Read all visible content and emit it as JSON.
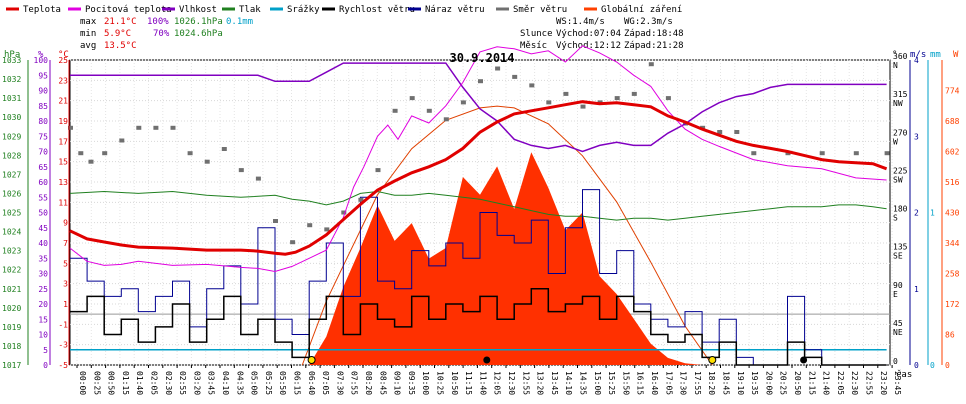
{
  "chart_data": {
    "type": "line",
    "title": "30.9.2014",
    "legend": [
      {
        "name": "Teplota",
        "color": "#e00000"
      },
      {
        "name": "Pocitová teplota",
        "color": "#e000e0"
      },
      {
        "name": "Vlhkost",
        "color": "#8000c0"
      },
      {
        "name": "Tlak",
        "color": "#208020"
      },
      {
        "name": "Srážky",
        "color": "#00a0c8"
      },
      {
        "name": "Rychlost větru",
        "color": "#000000"
      },
      {
        "name": "Náraz větru",
        "color": "#000090"
      },
      {
        "name": "Směr větru",
        "color": "#707070"
      },
      {
        "name": "Globální záření",
        "color": "#ff4000"
      }
    ],
    "stats": {
      "max_label": "max",
      "max_temp": "21.1°C",
      "max_hum": "100%",
      "max_press": "1026.1hPa",
      "max_rain": "0.1mm",
      "min_label": "min",
      "min_temp": "5.9°C",
      "min_hum": "70%",
      "min_press": "1024.6hPa",
      "avg_label": "avg",
      "avg_temp": "13.5°C"
    },
    "info": {
      "ws": "WS:1.4m/s",
      "wg": "WG:2.3m/s",
      "slunce_label": "Slunce",
      "slunce_vychod": "Východ:07:04",
      "slunce_zapad": "Západ:18:48",
      "mesic_label": "Měsíc",
      "mesic_vychod": "Východ:12:12",
      "mesic_zapad": "Západ:21:28"
    },
    "axes": {
      "hpa_label": "hPa",
      "pct_label": "%",
      "temp_label": "°C",
      "hpa_ticks": [
        "1033",
        "1032",
        "1031",
        "1030",
        "1029",
        "1028",
        "1027",
        "1026",
        "1025",
        "1024",
        "1023",
        "1022",
        "1021",
        "1020",
        "1019",
        "1018",
        "1017"
      ],
      "pct_ticks": [
        "100",
        "95",
        "90",
        "85",
        "80",
        "75",
        "70",
        "65",
        "60",
        "55",
        "50",
        "45",
        "40",
        "35",
        "30",
        "25",
        "20",
        "15",
        "10",
        "5",
        "0"
      ],
      "temp_ticks": [
        "25",
        "23",
        "21",
        "19",
        "17",
        "15",
        "13",
        "11",
        "9",
        "7",
        "5",
        "3",
        "1",
        "-1",
        "-3",
        "-5"
      ],
      "deg_label": "°",
      "deg_ticks": [
        "360",
        "315",
        "270",
        "225",
        "180",
        "135",
        "90",
        "45",
        "0"
      ],
      "dir_ticks": [
        "N",
        "NW",
        "W",
        "SW",
        "S",
        "SE",
        "E",
        "NE",
        ""
      ],
      "ms_label": "m/s",
      "mm_label": "mm",
      "w_label": "W",
      "ms_ticks": [
        "4",
        "3",
        "2",
        "1",
        "0"
      ],
      "mm_ticks": [
        "1",
        "0"
      ],
      "w_ticks": [
        "774",
        "688",
        "602",
        "516",
        "430",
        "344",
        "258",
        "172",
        "86",
        "0"
      ],
      "x_unit": "čas",
      "x_ticks": [
        "00:00",
        "00:25",
        "00:50",
        "01:15",
        "01:40",
        "02:05",
        "02:30",
        "02:55",
        "03:20",
        "03:45",
        "04:10",
        "04:35",
        "05:00",
        "05:25",
        "05:50",
        "06:15",
        "06:40",
        "07:05",
        "07:30",
        "07:55",
        "08:20",
        "08:45",
        "09:10",
        "09:35",
        "10:00",
        "10:25",
        "10:50",
        "11:15",
        "11:40",
        "12:05",
        "12:30",
        "12:55",
        "13:20",
        "13:45",
        "14:10",
        "14:35",
        "15:00",
        "15:25",
        "15:50",
        "16:15",
        "16:40",
        "17:05",
        "17:30",
        "17:55",
        "18:20",
        "18:45",
        "19:10",
        "19:35",
        "20:00",
        "20:25",
        "20:50",
        "21:15",
        "21:40",
        "22:05",
        "22:30",
        "22:55",
        "23:20",
        "23:45"
      ]
    },
    "series": {
      "temperature": {
        "x": [
          0,
          0.5,
          1,
          1.5,
          2,
          3,
          4,
          5,
          5.5,
          6,
          6.3,
          6.6,
          7,
          7.5,
          8,
          8.5,
          9,
          9.5,
          10,
          10.5,
          11,
          11.5,
          12,
          12.5,
          13,
          13.5,
          14,
          14.5,
          15,
          15.5,
          16,
          16.5,
          17,
          17.5,
          18,
          18.5,
          19,
          19.5,
          20,
          20.5,
          21,
          21.5,
          22,
          22.5,
          23,
          23.5,
          23.9
        ],
        "y": [
          8.2,
          7.4,
          7.1,
          6.8,
          6.6,
          6.5,
          6.3,
          6.3,
          6.2,
          6.0,
          5.9,
          6.1,
          6.7,
          7.8,
          9.3,
          10.8,
          12.2,
          13.1,
          13.9,
          14.5,
          15.2,
          16.3,
          17.9,
          18.9,
          19.7,
          20.0,
          20.3,
          20.6,
          20.9,
          20.7,
          20.8,
          20.6,
          20.4,
          19.5,
          18.9,
          18.2,
          17.6,
          17.0,
          16.6,
          16.3,
          16.0,
          15.6,
          15.2,
          15.0,
          14.9,
          14.8,
          14.3
        ]
      },
      "feels_like": {
        "x": [
          0,
          0.5,
          1,
          1.5,
          2,
          3,
          4,
          5,
          5.5,
          6,
          6.5,
          7,
          7.5,
          8,
          8.3,
          8.6,
          9,
          9.3,
          9.6,
          10,
          10.5,
          11,
          11.5,
          12,
          12.5,
          13,
          13.5,
          14,
          14.5,
          15,
          15.5,
          16,
          16.5,
          17,
          17.5,
          18,
          18.5,
          19,
          20,
          21,
          22,
          23,
          23.9
        ],
        "y": [
          6.5,
          5.2,
          4.8,
          4.9,
          5.2,
          4.8,
          4.9,
          4.6,
          4.5,
          4.2,
          4.7,
          5.5,
          6.3,
          9.5,
          12.5,
          14.5,
          17.5,
          18.6,
          17.2,
          19.5,
          18.8,
          20.5,
          22.8,
          25.8,
          26.3,
          26.1,
          25.6,
          25.9,
          24.8,
          26.4,
          25.7,
          24.8,
          23.5,
          22.4,
          20.0,
          18.2,
          17.2,
          16.5,
          15.2,
          14.6,
          14.3,
          13.4,
          13.2
        ]
      },
      "humidity": {
        "x": [
          0,
          1,
          2,
          3,
          4,
          5,
          5.5,
          6,
          6.5,
          7,
          7.5,
          8,
          8.5,
          9,
          9.5,
          10,
          10.5,
          11,
          11.5,
          12,
          12.5,
          13,
          13.5,
          14,
          14.5,
          15,
          15.5,
          16,
          16.5,
          17,
          17.5,
          18,
          18.5,
          19,
          19.5,
          20,
          20.5,
          21,
          21.5,
          22,
          23,
          23.9
        ],
        "y": [
          95,
          95,
          95,
          95,
          95,
          95,
          95,
          93,
          93,
          93,
          96,
          99,
          99,
          99,
          99,
          99,
          99,
          99,
          91,
          84,
          80,
          74,
          72,
          71,
          72,
          70,
          72,
          73,
          72,
          72,
          76,
          79,
          83,
          86,
          88,
          89,
          91,
          92,
          92,
          92,
          92,
          92
        ]
      },
      "pressure": {
        "x": [
          0,
          1,
          2,
          3,
          4,
          5,
          6,
          6.5,
          7,
          7.5,
          8,
          8.5,
          9,
          9.5,
          10,
          10.5,
          11,
          11.5,
          12,
          12.5,
          13,
          13.5,
          14,
          14.5,
          15,
          15.5,
          16,
          16.5,
          17,
          17.5,
          18,
          18.5,
          19,
          19.5,
          20,
          20.5,
          21,
          21.5,
          22,
          22.5,
          23,
          23.5,
          23.9
        ],
        "y": [
          1026.0,
          1026.1,
          1026.0,
          1026.1,
          1025.9,
          1025.8,
          1025.9,
          1025.7,
          1025.6,
          1025.4,
          1025.6,
          1026.0,
          1026.1,
          1025.9,
          1025.9,
          1026.0,
          1025.9,
          1025.8,
          1025.7,
          1025.5,
          1025.3,
          1025.1,
          1024.9,
          1024.8,
          1024.8,
          1024.7,
          1024.6,
          1024.7,
          1024.7,
          1024.6,
          1024.7,
          1024.8,
          1024.9,
          1025.0,
          1025.1,
          1025.2,
          1025.3,
          1025.3,
          1025.3,
          1025.4,
          1025.4,
          1025.3,
          1025.2
        ]
      },
      "wind_speed": {
        "x": [
          0,
          0.5,
          1,
          1.5,
          2,
          2.5,
          3,
          3.5,
          4,
          4.5,
          5,
          5.5,
          6,
          6.5,
          7,
          7.5,
          8,
          8.5,
          9,
          9.5,
          10,
          10.5,
          11,
          11.5,
          12,
          12.5,
          13,
          13.5,
          14,
          14.5,
          15,
          15.5,
          16,
          16.5,
          17,
          17.5,
          18,
          18.5,
          19,
          19.5,
          20,
          20.5,
          21,
          21.5,
          22,
          22.5,
          23,
          23.5,
          23.9
        ],
        "y": [
          0.7,
          0.9,
          0.4,
          0.6,
          0.3,
          0.5,
          0.8,
          0.3,
          0.6,
          0.9,
          0.4,
          0.6,
          0.3,
          0.1,
          0.6,
          0.9,
          0.4,
          0.8,
          0.6,
          0.5,
          0.9,
          0.6,
          0.8,
          0.7,
          0.9,
          0.6,
          0.8,
          1.0,
          0.7,
          0.8,
          0.9,
          0.6,
          0.9,
          0.7,
          0.4,
          0.3,
          0.4,
          0.1,
          0.3,
          0.0,
          0.0,
          0.0,
          0.3,
          0.1,
          0.0,
          0.0,
          0.0,
          0.0,
          0.0
        ]
      },
      "wind_gust": {
        "x": [
          0,
          0.5,
          1,
          1.5,
          2,
          2.5,
          3,
          3.5,
          4,
          4.5,
          5,
          5.5,
          6,
          6.5,
          7,
          7.5,
          8,
          8.5,
          9,
          9.5,
          10,
          10.5,
          11,
          11.5,
          12,
          12.5,
          13,
          13.5,
          14,
          14.5,
          15,
          15.5,
          16,
          16.5,
          17,
          17.5,
          18,
          18.5,
          19,
          19.5,
          20,
          20.5,
          21,
          21.5,
          22,
          22.5,
          23,
          23.5,
          23.9
        ],
        "y": [
          1.4,
          1.1,
          0.9,
          1.0,
          0.7,
          0.9,
          1.1,
          0.5,
          1.0,
          1.3,
          0.8,
          1.8,
          0.6,
          0.4,
          1.1,
          1.6,
          0.9,
          2.2,
          1.1,
          1.0,
          1.5,
          1.3,
          1.6,
          1.4,
          2.0,
          1.7,
          1.6,
          1.9,
          1.2,
          1.8,
          2.3,
          1.2,
          1.5,
          0.8,
          0.6,
          0.5,
          0.7,
          0.3,
          0.6,
          0.1,
          0.0,
          0.0,
          0.9,
          0.2,
          0.0,
          0.0,
          0.0,
          0.0,
          0.0
        ]
      },
      "wind_dir": {
        "x": [
          0,
          0.3,
          0.6,
          1,
          1.5,
          2,
          2.5,
          3,
          3.5,
          4,
          4.5,
          5,
          5.5,
          6,
          6.5,
          7,
          7.5,
          8,
          8.5,
          9,
          9.5,
          10,
          10.5,
          11,
          11.5,
          12,
          12.5,
          13,
          13.5,
          14,
          14.5,
          15,
          15.5,
          16,
          16.5,
          17,
          17.5,
          18,
          18.5,
          19,
          19.5,
          20,
          21,
          22,
          23,
          23.9
        ],
        "y": [
          280,
          250,
          240,
          250,
          265,
          280,
          280,
          280,
          250,
          240,
          255,
          230,
          220,
          170,
          145,
          165,
          160,
          180,
          195,
          230,
          300,
          315,
          300,
          290,
          310,
          335,
          350,
          340,
          330,
          310,
          320,
          305,
          310,
          315,
          320,
          355,
          315,
          285,
          280,
          275,
          275,
          250,
          250,
          250,
          250,
          250
        ]
      },
      "radiation": {
        "x": [
          7.0,
          7.5,
          8.0,
          8.5,
          9.0,
          9.5,
          10.0,
          10.5,
          11.0,
          11.5,
          12.0,
          12.5,
          13.0,
          13.5,
          14.0,
          14.5,
          15.0,
          15.5,
          16.0,
          16.5,
          17.0,
          17.5,
          18.0,
          18.5
        ],
        "y": [
          0,
          80,
          220,
          330,
          450,
          350,
          400,
          300,
          330,
          530,
          480,
          560,
          440,
          600,
          500,
          380,
          430,
          250,
          200,
          130,
          60,
          20,
          5,
          0
        ]
      },
      "clear_sky_radiation": {
        "x": [
          6.8,
          7.5,
          8,
          9,
          10,
          11,
          12,
          12.5,
          13,
          14,
          15,
          16,
          17,
          18,
          18.8
        ],
        "y": [
          0,
          180,
          280,
          480,
          610,
          690,
          725,
          730,
          725,
          680,
          590,
          460,
          290,
          110,
          0
        ]
      },
      "precipitation_mm": {
        "x": [
          0,
          23.9
        ],
        "y": [
          0.1,
          0.1
        ]
      }
    }
  }
}
